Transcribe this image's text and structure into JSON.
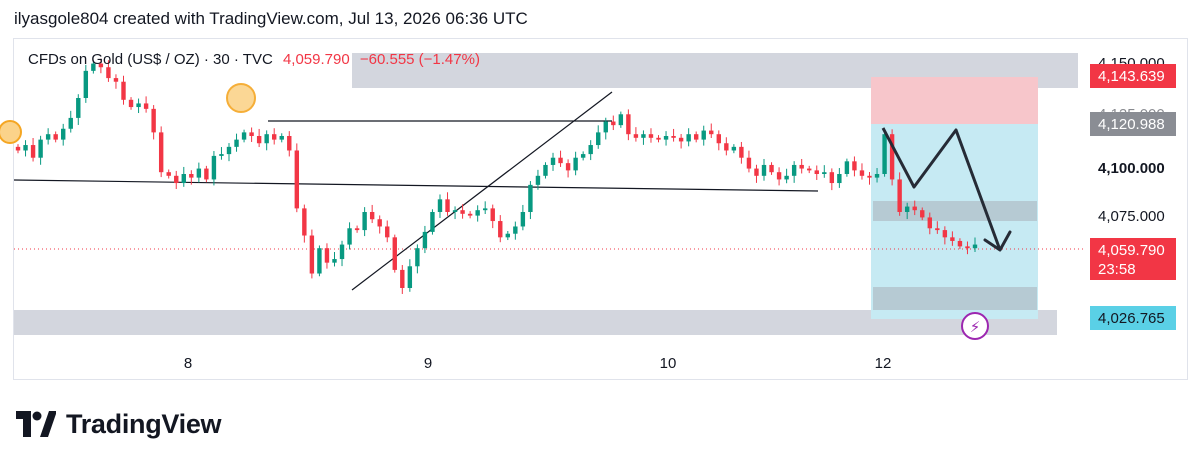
{
  "header": {
    "caption": "ilyasgole804 created with TradingView.com, Jul 13, 2026 06:36 UTC"
  },
  "legend": {
    "symbol": "CFDs on Gold (US$ / OZ) · 30 · TVC",
    "last_price": "4,059.790",
    "change": "−60.555 (−1.47%)"
  },
  "colors": {
    "up": "#089981",
    "down": "#f23645",
    "zone_gray": "#d1d4dc",
    "stop_zone": "#f7c6cb",
    "target_zone": "#c6eaf3",
    "price_tag_red": "#f23645",
    "entry_tag": "#8a8d94",
    "target_tag": "#5ad0e6",
    "marker_orange": "#f5a623",
    "marker_purple": "#9c27b0"
  },
  "chart_data": {
    "type": "candlestick",
    "title": "CFDs on Gold (US$ / OZ) · 30 · TVC",
    "x_tick_labels": [
      "8",
      "9",
      "10",
      "12"
    ],
    "y_tick_labels": [
      "4,150.000",
      "4,125.000",
      "4,100.000",
      "4,075.000"
    ],
    "ylim": [
      4015,
      4162
    ],
    "price_labels": [
      {
        "value": 4143.639,
        "text": "4,143.639",
        "kind": "stop-loss"
      },
      {
        "value": 4120.988,
        "text": "4,120.988",
        "kind": "entry"
      },
      {
        "value": 4100.0,
        "text": "4,100.000",
        "kind": "tick-bold"
      },
      {
        "value": 4059.79,
        "text": "4,059.790",
        "kind": "last-price",
        "countdown": "23:58"
      },
      {
        "value": 4026.765,
        "text": "4,026.765",
        "kind": "take-profit"
      }
    ],
    "candles_close_approx": [
      4112,
      4115,
      4108,
      4118,
      4121,
      4118,
      4124,
      4130,
      4141,
      4156,
      4160,
      4158,
      4152,
      4150,
      4140,
      4136,
      4138,
      4135,
      4122,
      4100,
      4098,
      4094,
      4099,
      4097,
      4102,
      4096,
      4109,
      4110,
      4114,
      4118,
      4122,
      4120,
      4116,
      4121,
      4118,
      4120,
      4112,
      4080,
      4065,
      4044,
      4058,
      4050,
      4052,
      4060,
      4069,
      4068,
      4078,
      4074,
      4070,
      4064,
      4046,
      4036,
      4048,
      4058,
      4067,
      4078,
      4085,
      4078,
      4079,
      4077,
      4076,
      4079,
      4080,
      4073,
      4064,
      4066,
      4070,
      4078,
      4093,
      4098,
      4104,
      4108,
      4105,
      4101,
      4108,
      4110,
      4115,
      4122,
      4128,
      4126,
      4132,
      4121,
      4119,
      4121,
      4119,
      4118,
      4120,
      4119,
      4117,
      4121,
      4118,
      4123,
      4121,
      4116,
      4112,
      4114,
      4108,
      4102,
      4098,
      4104,
      4100,
      4096,
      4098,
      4104,
      4102,
      4101,
      4099,
      4100,
      4094,
      4099,
      4106,
      4101,
      4098,
      4097,
      4099,
      4121,
      4096,
      4078,
      4081,
      4079,
      4075,
      4069,
      4068,
      4064,
      4062,
      4059,
      4058,
      4060
    ],
    "zones": [
      {
        "name": "resistance",
        "from": 4139.5,
        "to": 4151
      },
      {
        "name": "support",
        "from": 4022.5,
        "to": 4031
      },
      {
        "name": "stop-loss",
        "from": 4120.988,
        "to": 4143.639
      },
      {
        "name": "target",
        "from": 4026.765,
        "to": 4120.988
      }
    ],
    "annotations": [
      "trendline",
      "horizontal line",
      "zigzag projection arrow"
    ],
    "grid": false
  }
}
